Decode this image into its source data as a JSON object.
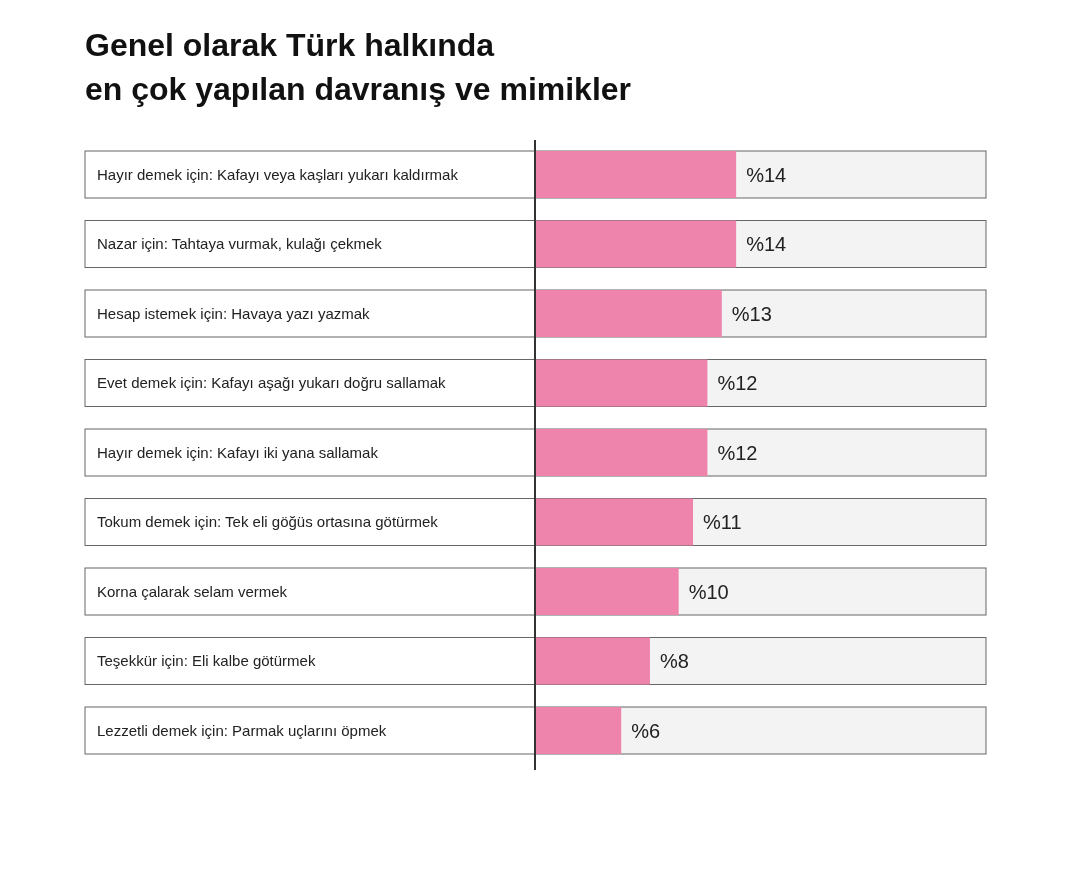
{
  "chart_data": {
    "type": "bar",
    "orientation": "horizontal",
    "title": "Genel olarak Türk halkında\nen çok yapılan davranış ve mimikler",
    "categories": [
      "Hayır demek için: Kafayı veya kaşları yukarı kaldırmak",
      "Nazar için: Tahtaya vurmak, kulağı çekmek",
      "Hesap istemek için: Havaya yazı yazmak",
      "Evet demek için: Kafayı aşağı yukarı doğru sallamak",
      "Hayır demek için: Kafayı iki yana sallamak",
      "Tokum demek için: Tek eli göğüs ortasına götürmek",
      "Korna çalarak selam vermek",
      "Teşekkür için: Eli kalbe götürmek",
      "Lezzetli demek için: Parmak uçlarını öpmek"
    ],
    "values": [
      14,
      14,
      13,
      12,
      12,
      11,
      10,
      8,
      6
    ],
    "value_labels": [
      "%14",
      "%14",
      "%13",
      "%12",
      "%12",
      "%11",
      "%10",
      "%8",
      "%6"
    ],
    "color": "#ee83ac"
  }
}
